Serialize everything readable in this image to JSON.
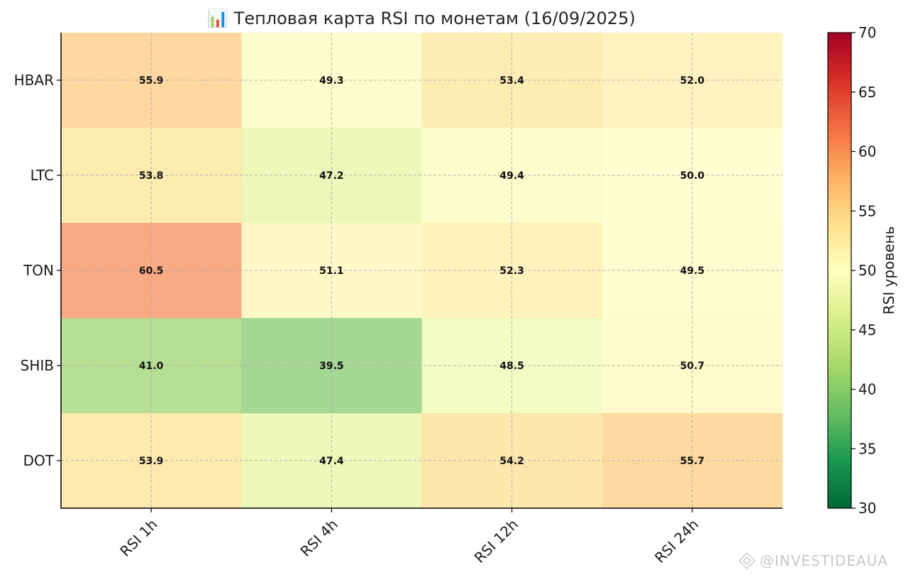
{
  "chart_data": {
    "type": "heatmap",
    "title": "📊 Тепловая карта RSI по монетам (16/09/2025)",
    "rows": [
      "HBAR",
      "LTC",
      "TON",
      "SHIB",
      "DOT"
    ],
    "columns": [
      "RSI 1h",
      "RSI 4h",
      "RSI 12h",
      "RSI 24h"
    ],
    "values": [
      [
        55.9,
        49.3,
        53.4,
        52.0
      ],
      [
        53.8,
        47.2,
        49.4,
        50.0
      ],
      [
        60.5,
        51.1,
        52.3,
        49.5
      ],
      [
        41.0,
        39.5,
        48.5,
        50.7
      ],
      [
        53.9,
        47.4,
        54.2,
        55.7
      ]
    ],
    "value_format": "one decimal",
    "colormap": "RdYlGn_r",
    "vmin": 30,
    "vmax": 70,
    "grid": true,
    "colorbar": {
      "label": "RSI уровень",
      "ticks": [
        30,
        35,
        40,
        45,
        50,
        55,
        60,
        65,
        70
      ]
    }
  },
  "watermark": {
    "text": "@INVESTIDEAUA"
  }
}
